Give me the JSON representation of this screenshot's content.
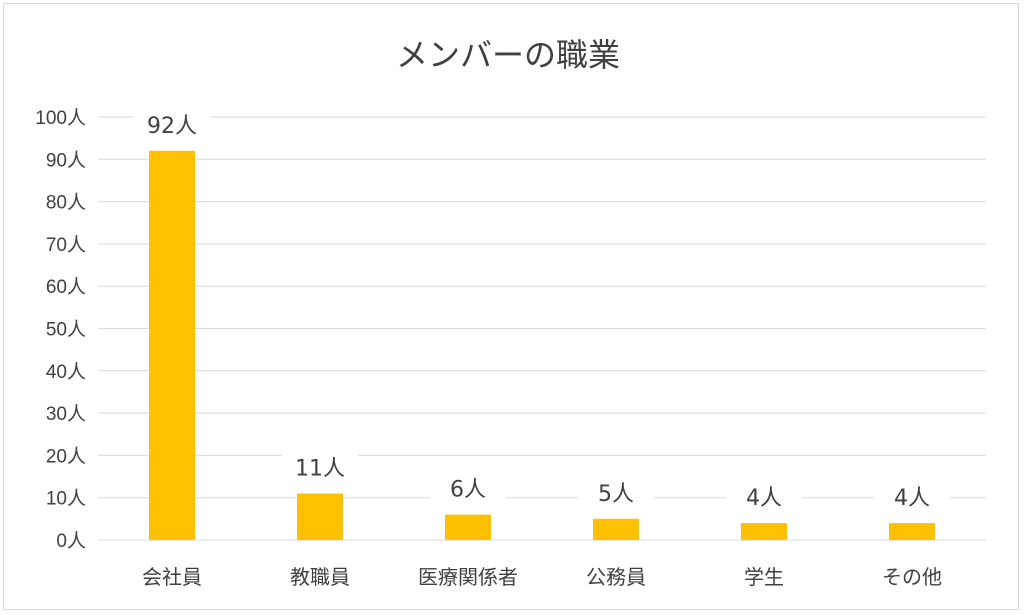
{
  "chart_data": {
    "type": "bar",
    "title": "メンバーの職業",
    "categories": [
      "会社員",
      "教職員",
      "医療関係者",
      "公務員",
      "学生",
      "その他"
    ],
    "values": [
      92,
      11,
      6,
      5,
      4,
      4
    ],
    "data_labels": [
      "92人",
      "11人",
      "6人",
      "5人",
      "4人",
      "4人"
    ],
    "y_tick_labels": [
      "0人",
      "10人",
      "20人",
      "30人",
      "40人",
      "50人",
      "60人",
      "70人",
      "80人",
      "90人",
      "100人"
    ],
    "ylim": [
      0,
      100
    ],
    "y_step": 10,
    "xlabel": "",
    "ylabel": "",
    "grid": true,
    "legend": "none",
    "bar_color": "#FFC000",
    "gridline_color": "#d9d9d9",
    "text_color": "#404040"
  }
}
